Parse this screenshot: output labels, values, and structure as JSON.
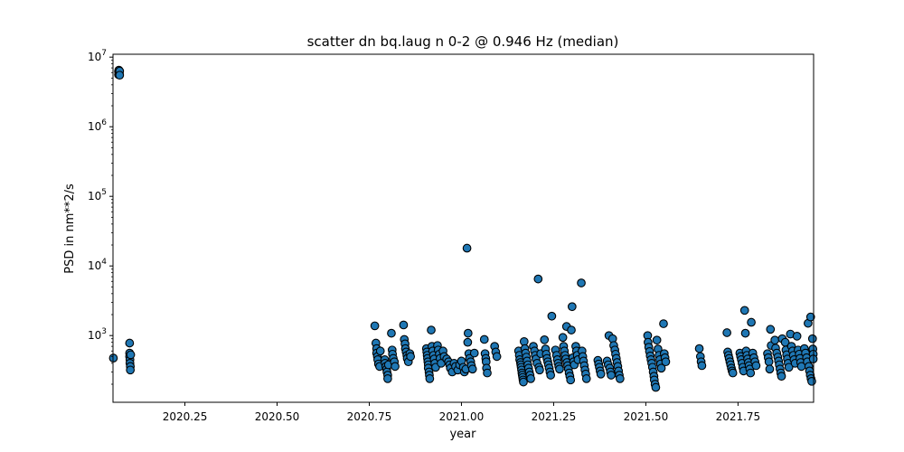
{
  "chart_data": {
    "type": "scatter",
    "title": "scatter dn bq.laug n 0-2 @ 0.946 Hz (median)",
    "xlabel": "year",
    "ylabel": "PSD in nm**2/s",
    "yscale": "log",
    "xlim": [
      2020.055,
      2021.955
    ],
    "ylim": [
      110,
      11000000
    ],
    "xticks": [
      2020.25,
      2020.5,
      2020.75,
      2021.0,
      2021.25,
      2021.5,
      2021.75
    ],
    "xtick_labels": [
      "2020.25",
      "2020.50",
      "2020.75",
      "2021.00",
      "2021.25",
      "2021.50",
      "2021.75"
    ],
    "yticks": [
      1000,
      10000,
      100000,
      1000000,
      10000000
    ],
    "ytick_labels": [
      "10^3",
      "10^4",
      "10^5",
      "10^6",
      "10^7"
    ],
    "marker_color": "#1f77b4",
    "marker_edge": "#000000",
    "grid": false,
    "points": [
      [
        2020.056,
        475
      ],
      [
        2020.07,
        6200000
      ],
      [
        2020.07,
        5600000
      ],
      [
        2020.071,
        6500000
      ],
      [
        2020.072,
        5900000
      ],
      [
        2020.073,
        6300000
      ],
      [
        2020.073,
        5500000
      ],
      [
        2020.1,
        780
      ],
      [
        2020.1,
        560
      ],
      [
        2020.1,
        500
      ],
      [
        2020.101,
        450
      ],
      [
        2020.101,
        400
      ],
      [
        2020.102,
        360
      ],
      [
        2020.102,
        320
      ],
      [
        2020.103,
        530
      ],
      [
        2020.765,
        1380
      ],
      [
        2020.768,
        780
      ],
      [
        2020.77,
        650
      ],
      [
        2020.77,
        560
      ],
      [
        2020.772,
        500
      ],
      [
        2020.773,
        450
      ],
      [
        2020.775,
        390
      ],
      [
        2020.778,
        360
      ],
      [
        2020.78,
        600
      ],
      [
        2020.792,
        450
      ],
      [
        2020.793,
        400
      ],
      [
        2020.795,
        360
      ],
      [
        2020.797,
        330
      ],
      [
        2020.798,
        300
      ],
      [
        2020.8,
        270
      ],
      [
        2020.8,
        240
      ],
      [
        2020.802,
        380
      ],
      [
        2020.81,
        1080
      ],
      [
        2020.812,
        620
      ],
      [
        2020.813,
        540
      ],
      [
        2020.815,
        470
      ],
      [
        2020.818,
        420
      ],
      [
        2020.82,
        360
      ],
      [
        2020.843,
        1420
      ],
      [
        2020.845,
        880
      ],
      [
        2020.847,
        760
      ],
      [
        2020.848,
        650
      ],
      [
        2020.85,
        580
      ],
      [
        2020.852,
        520
      ],
      [
        2020.853,
        470
      ],
      [
        2020.856,
        420
      ],
      [
        2020.86,
        550
      ],
      [
        2020.862,
        500
      ],
      [
        2020.905,
        650
      ],
      [
        2020.906,
        580
      ],
      [
        2020.907,
        520
      ],
      [
        2020.908,
        470
      ],
      [
        2020.909,
        420
      ],
      [
        2020.91,
        380
      ],
      [
        2020.91,
        340
      ],
      [
        2020.912,
        300
      ],
      [
        2020.913,
        270
      ],
      [
        2020.914,
        240
      ],
      [
        2020.918,
        1200
      ],
      [
        2020.92,
        700
      ],
      [
        2020.922,
        600
      ],
      [
        2020.924,
        520
      ],
      [
        2020.926,
        460
      ],
      [
        2020.928,
        400
      ],
      [
        2020.93,
        350
      ],
      [
        2020.935,
        720
      ],
      [
        2020.937,
        620
      ],
      [
        2020.94,
        540
      ],
      [
        2020.942,
        470
      ],
      [
        2020.945,
        400
      ],
      [
        2020.95,
        600
      ],
      [
        2020.953,
        500
      ],
      [
        2020.96,
        460
      ],
      [
        2020.965,
        420
      ],
      [
        2020.968,
        380
      ],
      [
        2020.97,
        340
      ],
      [
        2020.975,
        300
      ],
      [
        2020.98,
        400
      ],
      [
        2020.984,
        360
      ],
      [
        2020.99,
        320
      ],
      [
        2020.995,
        380
      ],
      [
        2021.0,
        430
      ],
      [
        2021.005,
        350
      ],
      [
        2021.008,
        300
      ],
      [
        2021.012,
        330
      ],
      [
        2021.015,
        18000
      ],
      [
        2021.017,
        800
      ],
      [
        2021.018,
        1080
      ],
      [
        2021.02,
        550
      ],
      [
        2021.022,
        470
      ],
      [
        2021.025,
        420
      ],
      [
        2021.027,
        370
      ],
      [
        2021.03,
        330
      ],
      [
        2021.035,
        560
      ],
      [
        2021.062,
        880
      ],
      [
        2021.064,
        550
      ],
      [
        2021.066,
        470
      ],
      [
        2021.067,
        420
      ],
      [
        2021.068,
        340
      ],
      [
        2021.07,
        290
      ],
      [
        2021.09,
        700
      ],
      [
        2021.093,
        580
      ],
      [
        2021.096,
        500
      ],
      [
        2021.155,
        600
      ],
      [
        2021.157,
        520
      ],
      [
        2021.158,
        450
      ],
      [
        2021.16,
        410
      ],
      [
        2021.161,
        380
      ],
      [
        2021.162,
        350
      ],
      [
        2021.163,
        320
      ],
      [
        2021.164,
        290
      ],
      [
        2021.165,
        270
      ],
      [
        2021.166,
        250
      ],
      [
        2021.167,
        230
      ],
      [
        2021.168,
        215
      ],
      [
        2021.17,
        820
      ],
      [
        2021.172,
        650
      ],
      [
        2021.174,
        560
      ],
      [
        2021.176,
        490
      ],
      [
        2021.178,
        430
      ],
      [
        2021.18,
        380
      ],
      [
        2021.182,
        340
      ],
      [
        2021.184,
        300
      ],
      [
        2021.186,
        270
      ],
      [
        2021.188,
        240
      ],
      [
        2021.195,
        700
      ],
      [
        2021.198,
        600
      ],
      [
        2021.2,
        520
      ],
      [
        2021.202,
        460
      ],
      [
        2021.205,
        400
      ],
      [
        2021.208,
        6500
      ],
      [
        2021.21,
        350
      ],
      [
        2021.212,
        320
      ],
      [
        2021.215,
        550
      ],
      [
        2021.225,
        870
      ],
      [
        2021.228,
        640
      ],
      [
        2021.23,
        540
      ],
      [
        2021.232,
        470
      ],
      [
        2021.234,
        420
      ],
      [
        2021.236,
        380
      ],
      [
        2021.238,
        340
      ],
      [
        2021.24,
        300
      ],
      [
        2021.242,
        270
      ],
      [
        2021.245,
        1900
      ],
      [
        2021.255,
        620
      ],
      [
        2021.258,
        520
      ],
      [
        2021.26,
        450
      ],
      [
        2021.262,
        400
      ],
      [
        2021.264,
        360
      ],
      [
        2021.266,
        330
      ],
      [
        2021.275,
        940
      ],
      [
        2021.277,
        700
      ],
      [
        2021.279,
        600
      ],
      [
        2021.281,
        520
      ],
      [
        2021.283,
        460
      ],
      [
        2021.285,
        1350
      ],
      [
        2021.286,
        410
      ],
      [
        2021.288,
        370
      ],
      [
        2021.29,
        330
      ],
      [
        2021.292,
        290
      ],
      [
        2021.294,
        260
      ],
      [
        2021.296,
        230
      ],
      [
        2021.298,
        1200
      ],
      [
        2021.3,
        2600
      ],
      [
        2021.302,
        480
      ],
      [
        2021.304,
        420
      ],
      [
        2021.306,
        380
      ],
      [
        2021.31,
        700
      ],
      [
        2021.312,
        600
      ],
      [
        2021.314,
        520
      ],
      [
        2021.316,
        450
      ],
      [
        2021.325,
        5700
      ],
      [
        2021.327,
        600
      ],
      [
        2021.329,
        500
      ],
      [
        2021.331,
        430
      ],
      [
        2021.333,
        370
      ],
      [
        2021.335,
        320
      ],
      [
        2021.337,
        280
      ],
      [
        2021.339,
        240
      ],
      [
        2021.37,
        440
      ],
      [
        2021.372,
        390
      ],
      [
        2021.374,
        350
      ],
      [
        2021.376,
        310
      ],
      [
        2021.378,
        280
      ],
      [
        2021.395,
        430
      ],
      [
        2021.398,
        380
      ],
      [
        2021.4,
        1000
      ],
      [
        2021.402,
        340
      ],
      [
        2021.404,
        300
      ],
      [
        2021.406,
        270
      ],
      [
        2021.41,
        900
      ],
      [
        2021.413,
        720
      ],
      [
        2021.416,
        620
      ],
      [
        2021.418,
        540
      ],
      [
        2021.42,
        470
      ],
      [
        2021.422,
        410
      ],
      [
        2021.424,
        360
      ],
      [
        2021.426,
        310
      ],
      [
        2021.428,
        270
      ],
      [
        2021.43,
        240
      ],
      [
        2021.505,
        1000
      ],
      [
        2021.506,
        800
      ],
      [
        2021.508,
        680
      ],
      [
        2021.51,
        590
      ],
      [
        2021.512,
        510
      ],
      [
        2021.514,
        450
      ],
      [
        2021.516,
        400
      ],
      [
        2021.518,
        350
      ],
      [
        2021.52,
        300
      ],
      [
        2021.522,
        260
      ],
      [
        2021.523,
        230
      ],
      [
        2021.525,
        200
      ],
      [
        2021.527,
        180
      ],
      [
        2021.53,
        860
      ],
      [
        2021.533,
        640
      ],
      [
        2021.536,
        520
      ],
      [
        2021.538,
        450
      ],
      [
        2021.54,
        390
      ],
      [
        2021.542,
        340
      ],
      [
        2021.548,
        1480
      ],
      [
        2021.55,
        550
      ],
      [
        2021.552,
        480
      ],
      [
        2021.554,
        420
      ],
      [
        2021.645,
        650
      ],
      [
        2021.648,
        500
      ],
      [
        2021.65,
        420
      ],
      [
        2021.652,
        370
      ],
      [
        2021.72,
        1100
      ],
      [
        2021.722,
        580
      ],
      [
        2021.724,
        520
      ],
      [
        2021.726,
        470
      ],
      [
        2021.728,
        420
      ],
      [
        2021.73,
        380
      ],
      [
        2021.732,
        340
      ],
      [
        2021.734,
        310
      ],
      [
        2021.736,
        290
      ],
      [
        2021.755,
        560
      ],
      [
        2021.757,
        500
      ],
      [
        2021.759,
        450
      ],
      [
        2021.761,
        400
      ],
      [
        2021.763,
        350
      ],
      [
        2021.765,
        310
      ],
      [
        2021.768,
        2300
      ],
      [
        2021.77,
        1080
      ],
      [
        2021.772,
        600
      ],
      [
        2021.774,
        520
      ],
      [
        2021.776,
        460
      ],
      [
        2021.778,
        410
      ],
      [
        2021.78,
        370
      ],
      [
        2021.782,
        330
      ],
      [
        2021.784,
        290
      ],
      [
        2021.786,
        1550
      ],
      [
        2021.79,
        560
      ],
      [
        2021.793,
        480
      ],
      [
        2021.796,
        420
      ],
      [
        2021.799,
        370
      ],
      [
        2021.83,
        550
      ],
      [
        2021.832,
        480
      ],
      [
        2021.834,
        420
      ],
      [
        2021.836,
        330
      ],
      [
        2021.838,
        1230
      ],
      [
        2021.84,
        720
      ],
      [
        2021.85,
        860
      ],
      [
        2021.852,
        660
      ],
      [
        2021.855,
        560
      ],
      [
        2021.858,
        490
      ],
      [
        2021.86,
        430
      ],
      [
        2021.862,
        380
      ],
      [
        2021.864,
        330
      ],
      [
        2021.866,
        290
      ],
      [
        2021.868,
        260
      ],
      [
        2021.87,
        900
      ],
      [
        2021.878,
        800
      ],
      [
        2021.88,
        620
      ],
      [
        2021.882,
        530
      ],
      [
        2021.884,
        460
      ],
      [
        2021.886,
        400
      ],
      [
        2021.888,
        350
      ],
      [
        2021.892,
        1050
      ],
      [
        2021.895,
        700
      ],
      [
        2021.898,
        600
      ],
      [
        2021.9,
        520
      ],
      [
        2021.902,
        450
      ],
      [
        2021.905,
        400
      ],
      [
        2021.91,
        980
      ],
      [
        2021.913,
        620
      ],
      [
        2021.916,
        540
      ],
      [
        2021.918,
        470
      ],
      [
        2021.92,
        410
      ],
      [
        2021.922,
        360
      ],
      [
        2021.93,
        650
      ],
      [
        2021.933,
        560
      ],
      [
        2021.936,
        480
      ],
      [
        2021.938,
        420
      ],
      [
        2021.94,
        1500
      ],
      [
        2021.942,
        360
      ],
      [
        2021.944,
        310
      ],
      [
        2021.946,
        270
      ],
      [
        2021.948,
        240
      ],
      [
        2021.95,
        220
      ],
      [
        2021.947,
        1850
      ],
      [
        2021.952,
        900
      ],
      [
        2021.953,
        640
      ],
      [
        2021.954,
        540
      ],
      [
        2021.954,
        460
      ]
    ]
  }
}
